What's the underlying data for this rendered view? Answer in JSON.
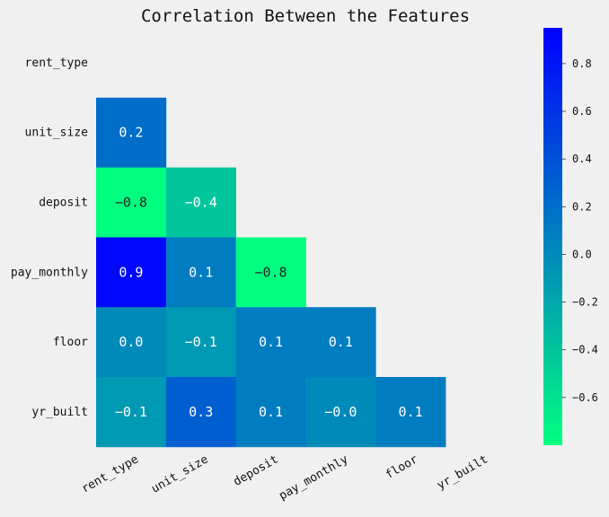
{
  "chart_data": {
    "type": "heatmap",
    "title": "Correlation Between the Features",
    "xlabel": "",
    "ylabel": "",
    "row_labels": [
      "rent_type",
      "unit_size",
      "deposit",
      "pay_monthly",
      "floor",
      "yr_built"
    ],
    "col_labels": [
      "rent_type",
      "unit_size",
      "deposit",
      "pay_monthly",
      "floor",
      "yr_built"
    ],
    "values": [
      [
        null,
        null,
        null,
        null,
        null,
        null
      ],
      [
        0.2,
        null,
        null,
        null,
        null,
        null
      ],
      [
        -0.8,
        -0.4,
        null,
        null,
        null,
        null
      ],
      [
        0.9,
        0.1,
        -0.8,
        null,
        null,
        null
      ],
      [
        0.0,
        -0.1,
        0.1,
        0.1,
        null,
        null
      ],
      [
        -0.1,
        0.3,
        0.1,
        -0.0,
        0.1,
        null
      ]
    ],
    "value_labels": [
      [
        null,
        null,
        null,
        null,
        null,
        null
      ],
      [
        "0.2",
        null,
        null,
        null,
        null,
        null
      ],
      [
        "−0.8",
        "−0.4",
        null,
        null,
        null,
        null
      ],
      [
        "0.9",
        "0.1",
        "−0.8",
        null,
        null,
        null
      ],
      [
        "0.0",
        "−0.1",
        "0.1",
        "0.1",
        null,
        null
      ],
      [
        "−0.1",
        "0.3",
        "0.1",
        "−0.0",
        "0.1",
        null
      ]
    ],
    "mask": "upper-triangle-including-diagonal",
    "colormap": "winter_r",
    "colormap_stops": [
      "#00ff80",
      "#0000ff"
    ],
    "colorbar": {
      "range": [
        -0.8,
        0.95
      ],
      "ticks": [
        0.8,
        0.6,
        0.4,
        0.2,
        0.0,
        -0.2,
        -0.4,
        -0.6
      ],
      "tick_labels": [
        "0.8",
        "0.6",
        "0.4",
        "0.2",
        "0.0",
        "−0.2",
        "−0.4",
        "−0.6"
      ]
    },
    "grid": false,
    "legend": "colorbar-right"
  }
}
